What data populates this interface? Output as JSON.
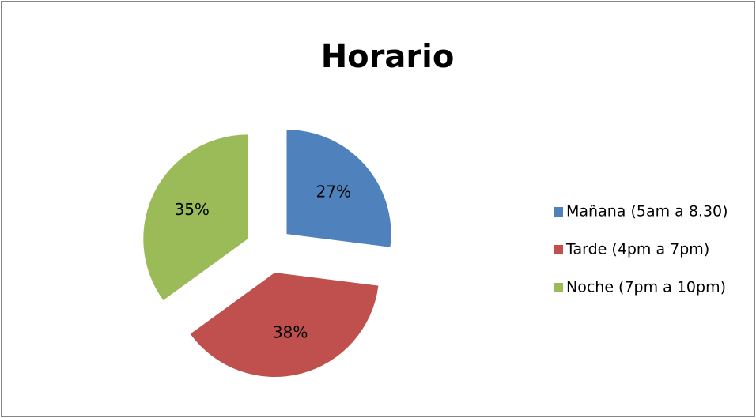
{
  "chart_data": {
    "type": "pie",
    "title": "Horario",
    "categories": [
      "Mañana (5am a 8.30)",
      "Tarde (4pm a 7pm)",
      "Noche (7pm a 10pm)"
    ],
    "values": [
      27,
      38,
      35
    ],
    "value_labels": [
      "27%",
      "38%",
      "35%"
    ],
    "colors": [
      "#4f81bd",
      "#c0504d",
      "#9bbb59"
    ],
    "legend": "right"
  }
}
